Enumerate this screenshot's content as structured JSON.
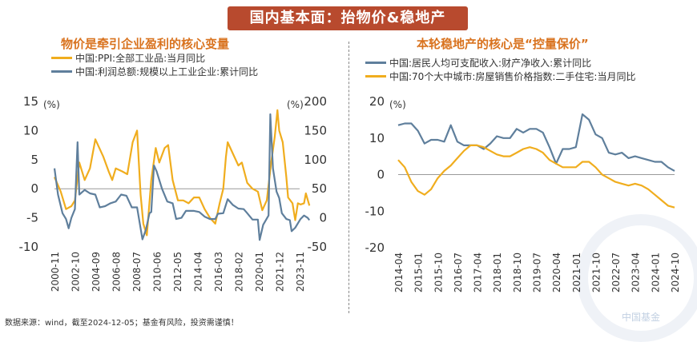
{
  "header": {
    "title": "国内基本面：抬物价&稳地产"
  },
  "left_panel": {
    "title": "物价是牵引企业盈利的核心变量",
    "legend": [
      {
        "label": "中国:PPI:全部工业品:当月同比",
        "color": "#f0ad1e"
      },
      {
        "label": "中国:利润总额:规模以上工业企业:累计同比",
        "color": "#5f7f9c"
      }
    ]
  },
  "right_panel": {
    "title": "本轮稳地产的核心是“控量保价”",
    "legend": [
      {
        "label": "中国:居民人均可支配收入:财产净收入:累计同比",
        "color": "#5f7f9c"
      },
      {
        "label": "中国:70个大中城市:房屋销售价格指数:二手住宅:当月同比",
        "color": "#f0ad1e"
      }
    ]
  },
  "footer": "数据来源：wind，截至2024-12-05；基金有风险，投资需谨慎！",
  "watermark": "中国基金",
  "chart_data": [
    {
      "type": "line",
      "title": "物价是牵引企业盈利的核心变量",
      "x_ticks": [
        "2000-11",
        "2002-10",
        "2004-09",
        "2006-08",
        "2008-07",
        "2010-06",
        "2012-05",
        "2014-04",
        "2016-03",
        "2018-02",
        "2020-01",
        "2021-12",
        "2023-11"
      ],
      "y_left": {
        "unit": "(%)",
        "lim": [
          -10,
          15
        ],
        "ticks": [
          -10,
          -5,
          0,
          5,
          10,
          15
        ]
      },
      "y_right": {
        "unit": "(%)",
        "lim": [
          -50,
          200
        ],
        "ticks": [
          -50,
          0,
          50,
          100,
          150,
          200
        ]
      },
      "grid": false,
      "legend_position": "top-left",
      "series": [
        {
          "name": "中国:PPI:全部工业品:当月同比",
          "axis": "left",
          "color": "#f0ad1e",
          "points": [
            [
              "2000-11",
              2.0
            ],
            [
              "2001-06",
              -0.5
            ],
            [
              "2001-12",
              -3.5
            ],
            [
              "2002-06",
              -3.0
            ],
            [
              "2002-10",
              -2.0
            ],
            [
              "2003-03",
              4.5
            ],
            [
              "2003-09",
              1.5
            ],
            [
              "2004-03",
              3.5
            ],
            [
              "2004-09",
              8.5
            ],
            [
              "2004-12",
              7.5
            ],
            [
              "2005-06",
              5.5
            ],
            [
              "2005-12",
              3.0
            ],
            [
              "2006-04",
              1.5
            ],
            [
              "2006-08",
              3.5
            ],
            [
              "2007-03",
              3.0
            ],
            [
              "2007-09",
              2.5
            ],
            [
              "2008-03",
              8.0
            ],
            [
              "2008-08",
              10.0
            ],
            [
              "2008-12",
              -1.0
            ],
            [
              "2009-03",
              -6.0
            ],
            [
              "2009-07",
              -8.0
            ],
            [
              "2009-12",
              1.5
            ],
            [
              "2010-05",
              7.0
            ],
            [
              "2010-09",
              4.5
            ],
            [
              "2011-03",
              7.0
            ],
            [
              "2011-07",
              7.5
            ],
            [
              "2011-12",
              1.5
            ],
            [
              "2012-06",
              -2.0
            ],
            [
              "2012-12",
              -2.0
            ],
            [
              "2013-06",
              -2.5
            ],
            [
              "2013-12",
              -1.5
            ],
            [
              "2014-06",
              -1.5
            ],
            [
              "2014-12",
              -3.5
            ],
            [
              "2015-06",
              -5.0
            ],
            [
              "2015-12",
              -6.0
            ],
            [
              "2016-05",
              -2.5
            ],
            [
              "2016-09",
              0.0
            ],
            [
              "2016-12",
              5.5
            ],
            [
              "2017-02",
              8.0
            ],
            [
              "2017-08",
              6.0
            ],
            [
              "2018-02",
              4.0
            ],
            [
              "2018-06",
              4.5
            ],
            [
              "2018-12",
              1.0
            ],
            [
              "2019-06",
              0.0
            ],
            [
              "2019-12",
              -0.5
            ],
            [
              "2020-05",
              -3.7
            ],
            [
              "2020-10",
              -2.0
            ],
            [
              "2021-03",
              4.5
            ],
            [
              "2021-07",
              9.0
            ],
            [
              "2021-10",
              13.5
            ],
            [
              "2021-12",
              10.0
            ],
            [
              "2022-04",
              8.0
            ],
            [
              "2022-08",
              2.0
            ],
            [
              "2022-10",
              -1.5
            ],
            [
              "2023-03",
              -2.5
            ],
            [
              "2023-06",
              -5.4
            ],
            [
              "2023-09",
              -2.5
            ],
            [
              "2023-12",
              -2.7
            ],
            [
              "2024-04",
              -2.5
            ],
            [
              "2024-06",
              -0.8
            ],
            [
              "2024-10",
              -2.9
            ]
          ]
        },
        {
          "name": "中国:利润总额:规模以上工业企业:累计同比",
          "axis": "right",
          "color": "#5f7f9c",
          "points": [
            [
              "2000-11",
              85
            ],
            [
              "2001-03",
              40
            ],
            [
              "2001-08",
              8
            ],
            [
              "2001-12",
              -2
            ],
            [
              "2002-03",
              -18
            ],
            [
              "2002-06",
              0
            ],
            [
              "2002-10",
              15
            ],
            [
              "2003-01",
              130
            ],
            [
              "2003-03",
              40
            ],
            [
              "2003-09",
              48
            ],
            [
              "2004-03",
              42
            ],
            [
              "2004-09",
              40
            ],
            [
              "2005-02",
              18
            ],
            [
              "2005-08",
              20
            ],
            [
              "2006-02",
              25
            ],
            [
              "2006-08",
              28
            ],
            [
              "2007-02",
              40
            ],
            [
              "2007-08",
              38
            ],
            [
              "2008-02",
              18
            ],
            [
              "2008-08",
              18
            ],
            [
              "2009-02",
              -37
            ],
            [
              "2009-06",
              -20
            ],
            [
              "2009-10",
              8
            ],
            [
              "2009-12",
              10
            ],
            [
              "2010-03",
              90
            ],
            [
              "2010-06",
              80
            ],
            [
              "2010-12",
              50
            ],
            [
              "2011-06",
              28
            ],
            [
              "2011-12",
              25
            ],
            [
              "2012-04",
              -2
            ],
            [
              "2012-10",
              0
            ],
            [
              "2013-03",
              12
            ],
            [
              "2013-12",
              12
            ],
            [
              "2014-06",
              10
            ],
            [
              "2014-12",
              2
            ],
            [
              "2015-06",
              -2
            ],
            [
              "2015-12",
              -2
            ],
            [
              "2016-03",
              7
            ],
            [
              "2016-09",
              8
            ],
            [
              "2017-02",
              32
            ],
            [
              "2017-08",
              22
            ],
            [
              "2018-02",
              16
            ],
            [
              "2018-08",
              15
            ],
            [
              "2018-12",
              8
            ],
            [
              "2019-06",
              -3
            ],
            [
              "2019-12",
              -3
            ],
            [
              "2020-02",
              -38
            ],
            [
              "2020-06",
              -12
            ],
            [
              "2020-12",
              4
            ],
            [
              "2021-02",
              178
            ],
            [
              "2021-05",
              85
            ],
            [
              "2021-09",
              45
            ],
            [
              "2021-12",
              34
            ],
            [
              "2022-03",
              8
            ],
            [
              "2022-08",
              -2
            ],
            [
              "2022-12",
              -4
            ],
            [
              "2023-02",
              -23
            ],
            [
              "2023-06",
              -17
            ],
            [
              "2023-12",
              -2
            ],
            [
              "2024-04",
              4
            ],
            [
              "2024-08",
              0
            ],
            [
              "2024-10",
              -4
            ]
          ]
        }
      ]
    },
    {
      "type": "line",
      "title": "本轮稳地产的核心是“控量保价”",
      "x_ticks": [
        "2014-04",
        "2015-01",
        "2015-10",
        "2016-07",
        "2017-04",
        "2018-01",
        "2018-10",
        "2019-07",
        "2020-04",
        "2021-01",
        "2021-10",
        "2022-07",
        "2023-04",
        "2024-01",
        "2024-10"
      ],
      "y_left": {
        "unit": "(%)",
        "lim": [
          -20,
          20
        ],
        "ticks": [
          -20,
          -10,
          0,
          10,
          20
        ]
      },
      "grid": false,
      "legend_position": "top-left",
      "series": [
        {
          "name": "中国:居民人均可支配收入:财产净收入:累计同比",
          "axis": "left",
          "color": "#5f7f9c",
          "points": [
            [
              "2014-04",
              13.5
            ],
            [
              "2014-07",
              14
            ],
            [
              "2014-10",
              14
            ],
            [
              "2015-01",
              12
            ],
            [
              "2015-04",
              8.5
            ],
            [
              "2015-07",
              9.5
            ],
            [
              "2015-10",
              9.5
            ],
            [
              "2016-01",
              9
            ],
            [
              "2016-04",
              13.5
            ],
            [
              "2016-07",
              9
            ],
            [
              "2016-10",
              8
            ],
            [
              "2017-01",
              8
            ],
            [
              "2017-04",
              8
            ],
            [
              "2017-07",
              7
            ],
            [
              "2017-10",
              8.5
            ],
            [
              "2018-01",
              10.5
            ],
            [
              "2018-04",
              10
            ],
            [
              "2018-07",
              10
            ],
            [
              "2018-10",
              12.5
            ],
            [
              "2019-01",
              11.5
            ],
            [
              "2019-04",
              12.5
            ],
            [
              "2019-07",
              12.5
            ],
            [
              "2019-10",
              11.5
            ],
            [
              "2020-01",
              7.5
            ],
            [
              "2020-04",
              3
            ],
            [
              "2020-07",
              7
            ],
            [
              "2020-10",
              7
            ],
            [
              "2021-01",
              7.5
            ],
            [
              "2021-04",
              16.5
            ],
            [
              "2021-07",
              15
            ],
            [
              "2021-10",
              11
            ],
            [
              "2022-01",
              10
            ],
            [
              "2022-04",
              6
            ],
            [
              "2022-07",
              5.5
            ],
            [
              "2022-10",
              6
            ],
            [
              "2023-01",
              4.5
            ],
            [
              "2023-04",
              5
            ],
            [
              "2023-07",
              4.5
            ],
            [
              "2023-10",
              4
            ],
            [
              "2024-01",
              3.5
            ],
            [
              "2024-04",
              3.5
            ],
            [
              "2024-07",
              2
            ],
            [
              "2024-10",
              1
            ]
          ]
        },
        {
          "name": "中国:70个大中城市:房屋销售价格指数:二手住宅:当月同比",
          "axis": "left",
          "color": "#f0ad1e",
          "points": [
            [
              "2014-04",
              4
            ],
            [
              "2014-07",
              2
            ],
            [
              "2014-10",
              -2
            ],
            [
              "2015-01",
              -4.5
            ],
            [
              "2015-04",
              -5.5
            ],
            [
              "2015-07",
              -4
            ],
            [
              "2015-10",
              -1
            ],
            [
              "2016-01",
              1
            ],
            [
              "2016-04",
              2.5
            ],
            [
              "2016-07",
              4.5
            ],
            [
              "2016-10",
              6.5
            ],
            [
              "2017-01",
              8
            ],
            [
              "2017-04",
              8
            ],
            [
              "2017-07",
              7.5
            ],
            [
              "2017-10",
              6.5
            ],
            [
              "2018-01",
              5.5
            ],
            [
              "2018-04",
              5
            ],
            [
              "2018-07",
              5
            ],
            [
              "2018-10",
              6
            ],
            [
              "2019-01",
              7
            ],
            [
              "2019-04",
              7.5
            ],
            [
              "2019-07",
              7
            ],
            [
              "2019-10",
              6
            ],
            [
              "2020-01",
              4
            ],
            [
              "2020-04",
              3
            ],
            [
              "2020-07",
              2
            ],
            [
              "2020-10",
              2
            ],
            [
              "2021-01",
              2
            ],
            [
              "2021-04",
              3.5
            ],
            [
              "2021-07",
              3.5
            ],
            [
              "2021-10",
              2
            ],
            [
              "2022-01",
              0
            ],
            [
              "2022-04",
              -1
            ],
            [
              "2022-07",
              -2
            ],
            [
              "2022-10",
              -2.5
            ],
            [
              "2023-01",
              -3
            ],
            [
              "2023-04",
              -2.5
            ],
            [
              "2023-07",
              -3
            ],
            [
              "2023-10",
              -4
            ],
            [
              "2024-01",
              -5.5
            ],
            [
              "2024-04",
              -7
            ],
            [
              "2024-07",
              -8.5
            ],
            [
              "2024-10",
              -9
            ]
          ]
        }
      ]
    }
  ]
}
